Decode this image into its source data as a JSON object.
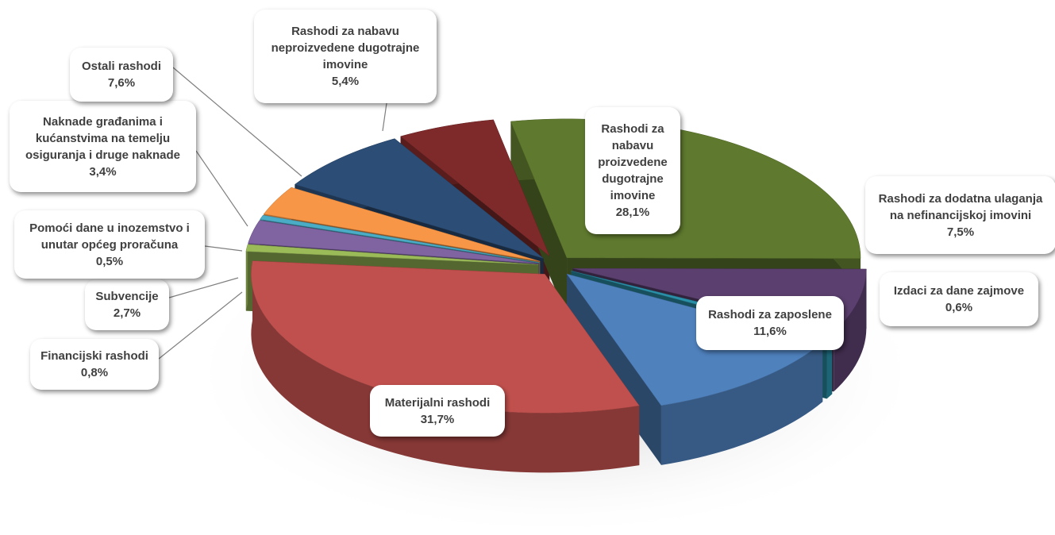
{
  "chart_data": {
    "type": "pie",
    "categories": [
      "Rashodi za nabavu proizvedene dugotrajne imovine",
      "Rashodi za dodatna ulaganja na nefinancijskoj imovini",
      "Izdaci za dane zajmove",
      "Rashodi za zaposlene",
      "Materijalni rashodi",
      "Financijski rashodi",
      "Subvencije",
      "Pomoći dane u inozemstvo i unutar općeg proračuna",
      "Naknade građanima i kućanstvima na temelju osiguranja i druge naknade",
      "Ostali rashodi",
      "Rashodi za nabavu neproizvedene dugotrajne imovine"
    ],
    "values": [
      28.1,
      7.5,
      0.6,
      11.6,
      31.7,
      0.8,
      2.7,
      0.5,
      3.4,
      7.6,
      5.4
    ],
    "value_labels": [
      "28,1%",
      "7,5%",
      "0,6%",
      "11,6%",
      "31,7%",
      "0,8%",
      "2,7%",
      "0,5%",
      "3,4%",
      "7,6%",
      "5,4%"
    ],
    "colors": [
      "#5f7a2e",
      "#5b3f6e",
      "#2a8fa8",
      "#4f81bd",
      "#c0504d",
      "#9bbb59",
      "#8064a2",
      "#4bacc6",
      "#f79646",
      "#2c4d75",
      "#7f2a2a"
    ]
  }
}
